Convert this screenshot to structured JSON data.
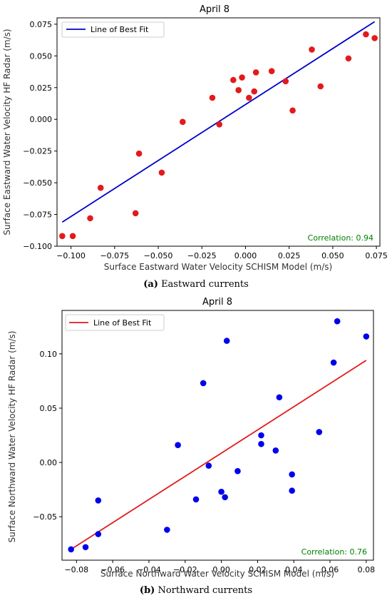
{
  "chart_data": [
    {
      "type": "scatter",
      "title": "April 8",
      "xlabel": "Surface Eastward Water Velocity SCHISM Model (m/s)",
      "ylabel": "Surface Eastward Water Velocity HF Radar (m/s)",
      "xlim": [
        -0.108,
        0.077
      ],
      "ylim": [
        -0.1,
        0.08
      ],
      "xticks": [
        -0.1,
        -0.075,
        -0.05,
        -0.025,
        0.0,
        0.025,
        0.05,
        0.075
      ],
      "xtick_labels": [
        "−0.100",
        "−0.075",
        "−0.050",
        "−0.025",
        "0.000",
        "0.025",
        "0.050",
        "0.075"
      ],
      "yticks": [
        -0.1,
        -0.075,
        -0.05,
        -0.025,
        0.0,
        0.025,
        0.05,
        0.075
      ],
      "ytick_labels": [
        "−0.100",
        "−0.075",
        "−0.050",
        "−0.025",
        "0.000",
        "0.025",
        "0.050",
        "0.075"
      ],
      "point_color": "#e31a1c",
      "line_color": "#0000cc",
      "legend": "Line of Best Fit",
      "legend_position": "top-left",
      "annotation": "Correlation: 0.94",
      "annotation_color": "#008000",
      "points": [
        {
          "x": -0.105,
          "y": -0.092
        },
        {
          "x": -0.099,
          "y": -0.092
        },
        {
          "x": -0.089,
          "y": -0.078
        },
        {
          "x": -0.083,
          "y": -0.054
        },
        {
          "x": -0.063,
          "y": -0.074
        },
        {
          "x": -0.061,
          "y": -0.027
        },
        {
          "x": -0.048,
          "y": -0.042
        },
        {
          "x": -0.036,
          "y": -0.002
        },
        {
          "x": -0.019,
          "y": 0.017
        },
        {
          "x": -0.015,
          "y": -0.004
        },
        {
          "x": -0.007,
          "y": 0.031
        },
        {
          "x": -0.004,
          "y": 0.023
        },
        {
          "x": -0.002,
          "y": 0.033
        },
        {
          "x": 0.002,
          "y": 0.017
        },
        {
          "x": 0.005,
          "y": 0.022
        },
        {
          "x": 0.006,
          "y": 0.037
        },
        {
          "x": 0.015,
          "y": 0.038
        },
        {
          "x": 0.023,
          "y": 0.03
        },
        {
          "x": 0.027,
          "y": 0.007
        },
        {
          "x": 0.038,
          "y": 0.055
        },
        {
          "x": 0.043,
          "y": 0.026
        },
        {
          "x": 0.059,
          "y": 0.048
        },
        {
          "x": 0.069,
          "y": 0.067
        },
        {
          "x": 0.074,
          "y": 0.064
        }
      ],
      "fit_line": {
        "x": [
          -0.105,
          0.074
        ],
        "y": [
          -0.081,
          0.077
        ]
      }
    },
    {
      "type": "scatter",
      "title": "April 8",
      "xlabel": "Surface Northward Water Velocity SCHISM Model (m/s)",
      "ylabel": "Surface Northward Water Velocity HF Radar (m/s)",
      "xlim": [
        -0.088,
        0.084
      ],
      "ylim": [
        -0.09,
        0.14
      ],
      "xticks": [
        -0.08,
        -0.06,
        -0.04,
        -0.02,
        0.0,
        0.02,
        0.04,
        0.06,
        0.08
      ],
      "xtick_labels": [
        "−0.08",
        "−0.06",
        "−0.04",
        "−0.02",
        "0.00",
        "0.02",
        "0.04",
        "0.06",
        "0.08"
      ],
      "yticks": [
        -0.05,
        0.0,
        0.05,
        0.1
      ],
      "ytick_labels": [
        "−0.05",
        "0.00",
        "0.05",
        "0.10"
      ],
      "point_color": "#0000ee",
      "line_color": "#e31a1c",
      "legend": "Line of Best Fit",
      "legend_position": "top-left",
      "annotation": "Correlation: 0.76",
      "annotation_color": "#008000",
      "points": [
        {
          "x": -0.083,
          "y": -0.08
        },
        {
          "x": -0.075,
          "y": -0.078
        },
        {
          "x": -0.068,
          "y": -0.066
        },
        {
          "x": -0.068,
          "y": -0.035
        },
        {
          "x": -0.03,
          "y": -0.062
        },
        {
          "x": -0.024,
          "y": 0.016
        },
        {
          "x": -0.014,
          "y": -0.034
        },
        {
          "x": -0.01,
          "y": 0.073
        },
        {
          "x": -0.007,
          "y": -0.003
        },
        {
          "x": 0.0,
          "y": -0.027
        },
        {
          "x": 0.002,
          "y": -0.032
        },
        {
          "x": 0.003,
          "y": 0.112
        },
        {
          "x": 0.009,
          "y": -0.008
        },
        {
          "x": 0.022,
          "y": 0.017
        },
        {
          "x": 0.022,
          "y": 0.025
        },
        {
          "x": 0.03,
          "y": 0.011
        },
        {
          "x": 0.032,
          "y": 0.06
        },
        {
          "x": 0.039,
          "y": -0.011
        },
        {
          "x": 0.039,
          "y": -0.026
        },
        {
          "x": 0.054,
          "y": 0.028
        },
        {
          "x": 0.062,
          "y": 0.092
        },
        {
          "x": 0.064,
          "y": 0.13
        },
        {
          "x": 0.08,
          "y": 0.116
        }
      ],
      "fit_line": {
        "x": [
          -0.083,
          0.08
        ],
        "y": [
          -0.08,
          0.094
        ]
      }
    }
  ],
  "captions": [
    {
      "label": "(a)",
      "text": " Eastward currents"
    },
    {
      "label": "(b)",
      "text": " Northward currents"
    }
  ]
}
